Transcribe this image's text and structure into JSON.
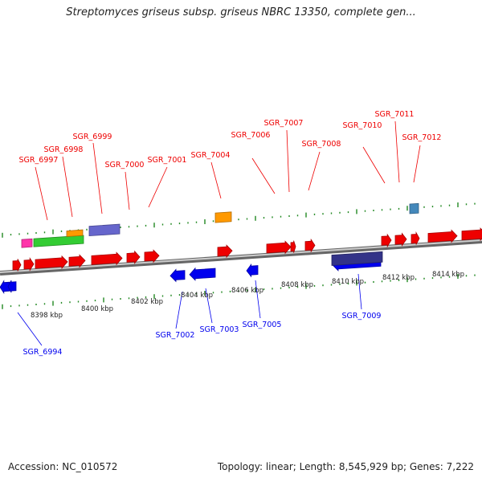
{
  "title": "Streptomyces griseus subsp. griseus NBRC 13350, complete gen...",
  "footer": {
    "accession": "Accession: NC_010572",
    "summary": "Topology: linear; Length: 8,545,929 bp; Genes: 7,222"
  },
  "colors": {
    "forward": "#ee0000",
    "reverse": "#0000ee",
    "backbone": "#888888",
    "ticks": "#228822",
    "orange": "#ff9900",
    "green": "#33cc33",
    "purple": "#6666cc",
    "navy": "#333388",
    "magenta": "#ff33aa",
    "steel": "#4488bb"
  },
  "scale": {
    "unit": "kbp",
    "labels": [
      "8398 kbp",
      "8400 kbp",
      "8402 kbp",
      "8404 kbp",
      "8406 kbp",
      "8408 kbp",
      "8410 kbp",
      "8412 kbp",
      "8414 kbp"
    ]
  },
  "forward_genes": [
    "SGR_6997",
    "SGR_6998",
    "SGR_6999",
    "SGR_7000",
    "SGR_7001",
    "SGR_7004",
    "SGR_7006",
    "SGR_7007",
    "SGR_7008",
    "SGR_7010",
    "SGR_7011",
    "SGR_7012"
  ],
  "reverse_genes": [
    "SGR_6994",
    "SGR_7002",
    "SGR_7003",
    "SGR_7005",
    "SGR_7009"
  ]
}
